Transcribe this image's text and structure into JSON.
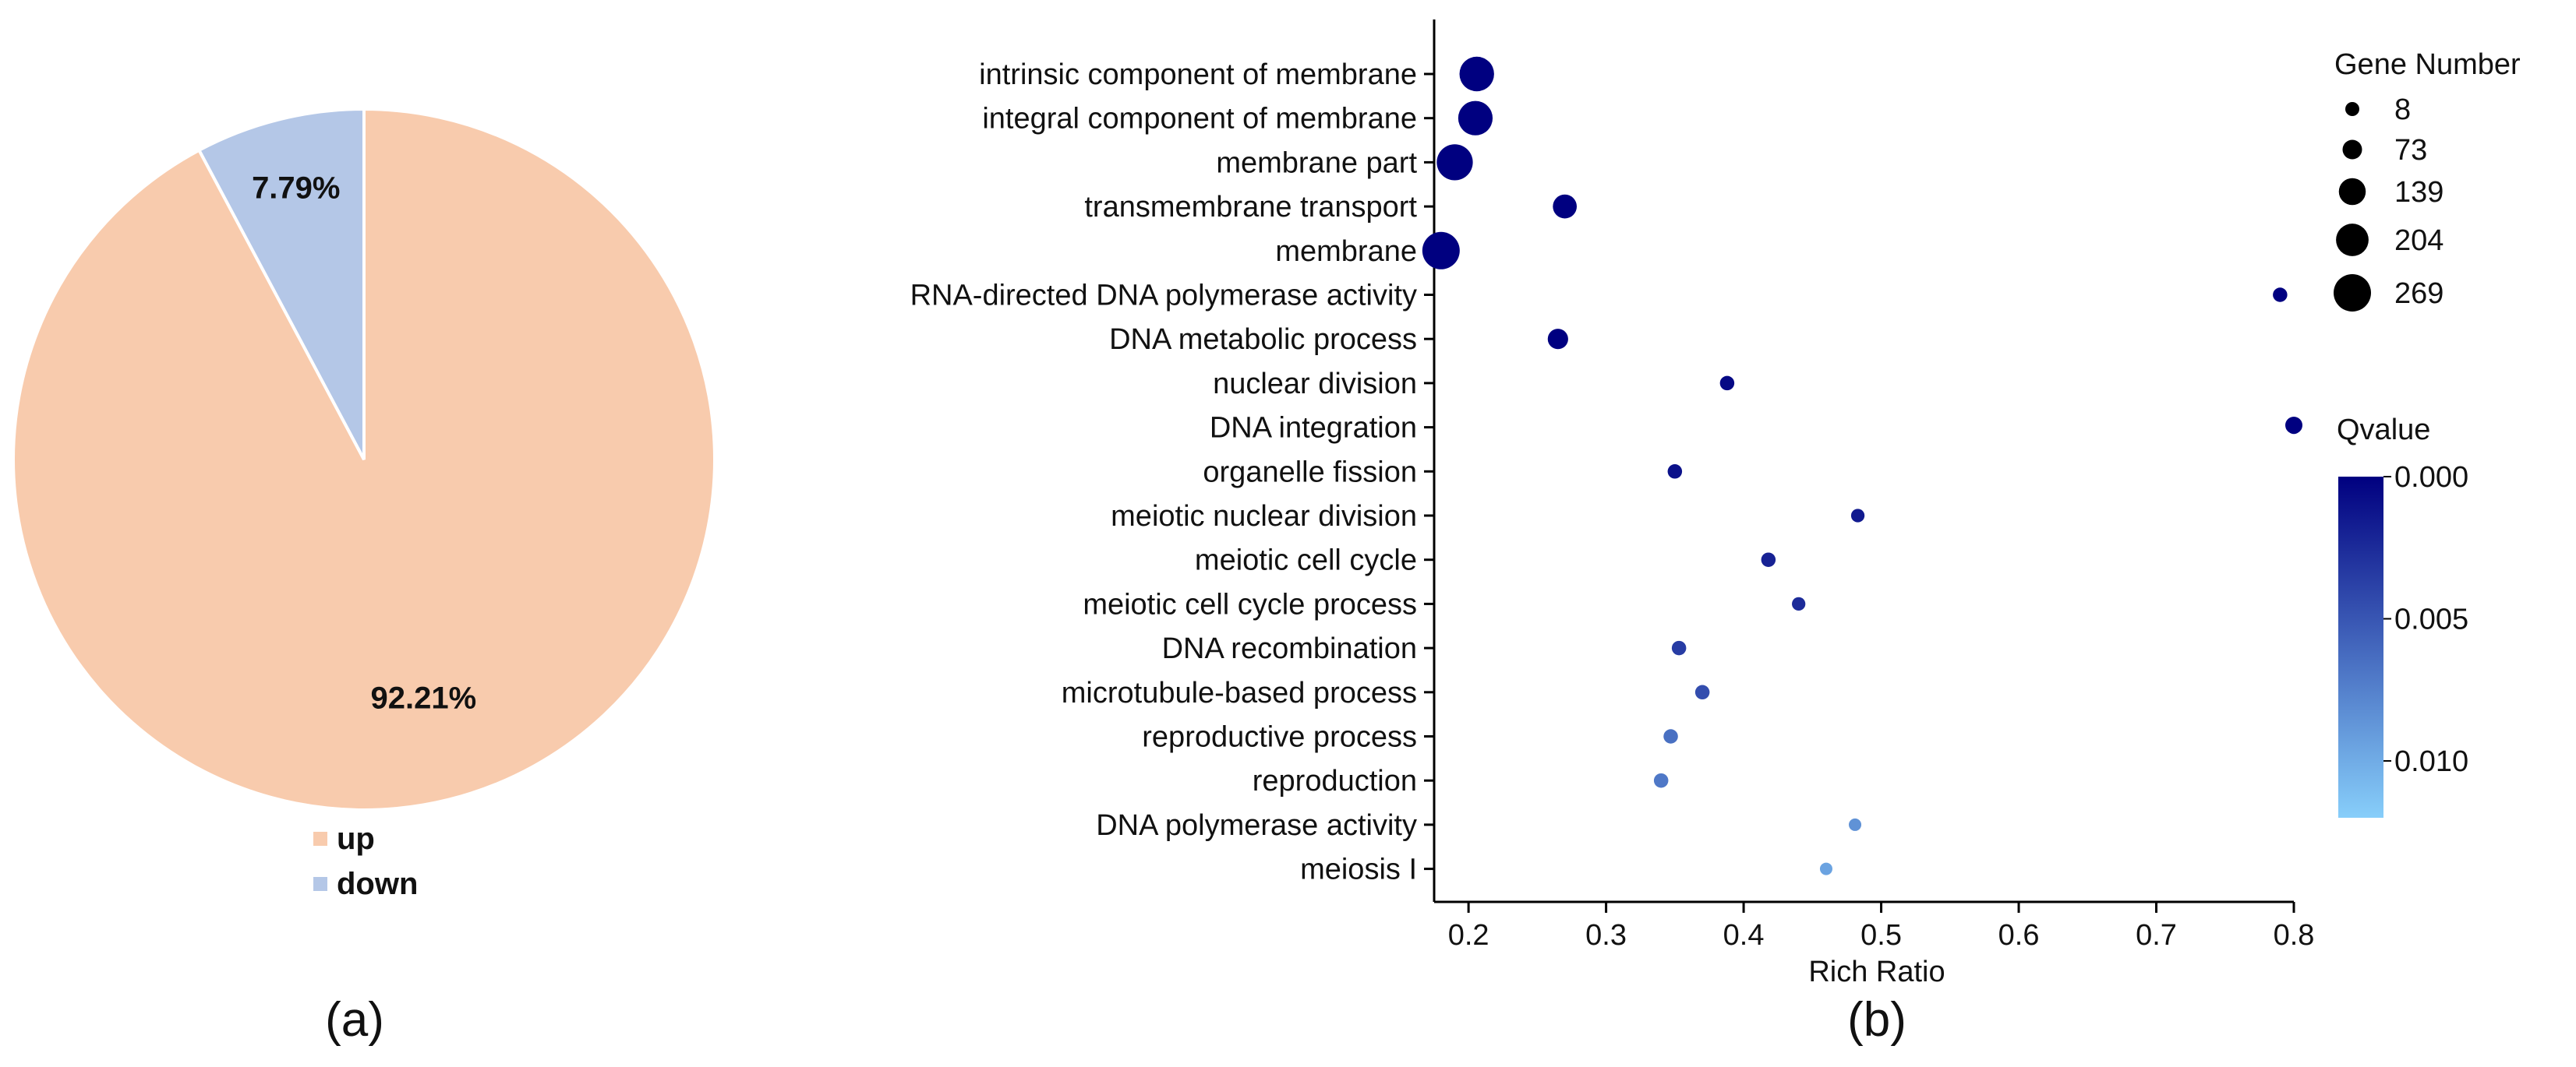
{
  "chart_data": [
    {
      "type": "pie",
      "panel_label": "(a)",
      "slices": [
        {
          "name": "up",
          "percent": 92.21,
          "label": "92.21%",
          "color": "#f8cbad"
        },
        {
          "name": "down",
          "percent": 7.79,
          "label": "7.79%",
          "color": "#b4c7e7"
        }
      ],
      "legend": [
        {
          "name": "up",
          "color": "#f8cbad"
        },
        {
          "name": "down",
          "color": "#b4c7e7"
        }
      ],
      "legend_position": "bottom"
    },
    {
      "type": "scatter",
      "panel_label": "(b)",
      "xlabel": "Rich Ratio",
      "xlim": [
        0.175,
        0.8
      ],
      "xticks": [
        {
          "value": 0.2,
          "label": "0.2"
        },
        {
          "value": 0.3,
          "label": "0.3"
        },
        {
          "value": 0.4,
          "label": "0.4"
        },
        {
          "value": 0.5,
          "label": "0.5"
        },
        {
          "value": 0.6,
          "label": "0.6"
        },
        {
          "value": 0.7,
          "label": "0.7"
        },
        {
          "value": 0.8,
          "label": "0.8"
        }
      ],
      "points": [
        {
          "term": "intrinsic component of membrane",
          "rich_ratio": 0.206,
          "gene_number": 230,
          "qvalue": 0.0
        },
        {
          "term": "integral component of membrane",
          "rich_ratio": 0.205,
          "gene_number": 228,
          "qvalue": 0.0
        },
        {
          "term": "membrane part",
          "rich_ratio": 0.19,
          "gene_number": 250,
          "qvalue": 0.0
        },
        {
          "term": "transmembrane transport",
          "rich_ratio": 0.27,
          "gene_number": 110,
          "qvalue": 0.0
        },
        {
          "term": "membrane",
          "rich_ratio": 0.18,
          "gene_number": 269,
          "qvalue": 0.0
        },
        {
          "term": "RNA-directed DNA polymerase activity",
          "rich_ratio": 0.79,
          "gene_number": 40,
          "qvalue": 0.0
        },
        {
          "term": "DNA metabolic process",
          "rich_ratio": 0.265,
          "gene_number": 80,
          "qvalue": 0.0
        },
        {
          "term": "nuclear division",
          "rich_ratio": 0.388,
          "gene_number": 40,
          "qvalue": 0.0005
        },
        {
          "term": "DNA integration",
          "rich_ratio": 0.8,
          "gene_number": 35,
          "qvalue": 0.0005
        },
        {
          "term": "organelle fission",
          "rich_ratio": 0.35,
          "gene_number": 40,
          "qvalue": 0.001
        },
        {
          "term": "meiotic nuclear division",
          "rich_ratio": 0.483,
          "gene_number": 35,
          "qvalue": 0.0015
        },
        {
          "term": "meiotic cell cycle",
          "rich_ratio": 0.418,
          "gene_number": 40,
          "qvalue": 0.002
        },
        {
          "term": "meiotic cell cycle process",
          "rich_ratio": 0.44,
          "gene_number": 35,
          "qvalue": 0.0025
        },
        {
          "term": "DNA recombination",
          "rich_ratio": 0.353,
          "gene_number": 40,
          "qvalue": 0.0035
        },
        {
          "term": "microtubule-based process",
          "rich_ratio": 0.37,
          "gene_number": 40,
          "qvalue": 0.0045
        },
        {
          "term": "reproductive process",
          "rich_ratio": 0.347,
          "gene_number": 40,
          "qvalue": 0.0065
        },
        {
          "term": "reproduction",
          "rich_ratio": 0.34,
          "gene_number": 40,
          "qvalue": 0.007
        },
        {
          "term": "DNA polymerase activity",
          "rich_ratio": 0.481,
          "gene_number": 30,
          "qvalue": 0.0085
        },
        {
          "term": "meiosis I",
          "rich_ratio": 0.46,
          "gene_number": 30,
          "qvalue": 0.0095
        }
      ],
      "size_legend": {
        "title": "Gene Number",
        "values": [
          8,
          73,
          139,
          204,
          269
        ],
        "labels": [
          "8",
          "73",
          "139",
          "204",
          "269"
        ]
      },
      "color_legend": {
        "title": "Qvalue",
        "range": [
          0.0,
          0.012
        ],
        "ticks": [
          {
            "value": 0.0,
            "label": "0.000"
          },
          {
            "value": 0.005,
            "label": "0.005"
          },
          {
            "value": 0.01,
            "label": "0.010"
          }
        ],
        "color_low": "#000080",
        "color_high": "#87cefa"
      },
      "legend_position": "right"
    }
  ]
}
